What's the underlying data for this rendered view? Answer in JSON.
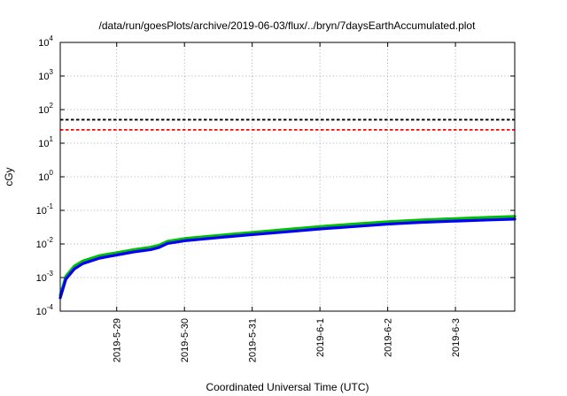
{
  "chart_data": {
    "type": "line",
    "title": "/data/run/goesPlots/archive/2019-06-03/flux/../bryn/7daysEarthAccumulated.plot",
    "xlabel": "Coordinated Universal Time (UTC)",
    "ylabel": "cGy",
    "x_range": [
      "2019-05-28T04:00",
      "2019-06-03T21:00"
    ],
    "ylim": [
      0.0001,
      10000
    ],
    "yscale": "log",
    "grid": true,
    "x_ticks": [
      "2019-5-29",
      "2019-5-30",
      "2019-5-31",
      "2019-6-1",
      "2019-6-2",
      "2019-6-3"
    ],
    "y_ticks": [
      {
        "value": 0.0001,
        "base": "10",
        "exp": "-4"
      },
      {
        "value": 0.001,
        "base": "10",
        "exp": "-3"
      },
      {
        "value": 0.01,
        "base": "10",
        "exp": "-2"
      },
      {
        "value": 0.1,
        "base": "10",
        "exp": "-1"
      },
      {
        "value": 1,
        "base": "10",
        "exp": "0"
      },
      {
        "value": 10,
        "base": "10",
        "exp": "1"
      },
      {
        "value": 100,
        "base": "10",
        "exp": "2"
      },
      {
        "value": 1000,
        "base": "10",
        "exp": "3"
      },
      {
        "value": 10000,
        "base": "10",
        "exp": "4"
      }
    ],
    "thresholds": [
      {
        "value": 50,
        "color": "#000000"
      },
      {
        "value": 25,
        "color": "#ff0000"
      }
    ],
    "series": [
      {
        "color": "#00c000",
        "x": [
          "2019-05-28T04:00",
          "2019-05-28T06:00",
          "2019-05-28T09:00",
          "2019-05-28T12:00",
          "2019-05-28T18:00",
          "2019-05-29T00:00",
          "2019-05-29T06:00",
          "2019-05-29T12:00",
          "2019-05-29T15:00",
          "2019-05-29T18:00",
          "2019-05-30T00:00",
          "2019-05-30T12:00",
          "2019-05-31T00:00",
          "2019-05-31T12:00",
          "2019-06-01T00:00",
          "2019-06-01T12:00",
          "2019-06-02T00:00",
          "2019-06-02T12:00",
          "2019-06-03T00:00",
          "2019-06-03T12:00",
          "2019-06-03T21:00"
        ],
        "y": [
          0.0003,
          0.0011,
          0.0022,
          0.0031,
          0.0045,
          0.0055,
          0.0068,
          0.008,
          0.0092,
          0.0121,
          0.0145,
          0.018,
          0.022,
          0.027,
          0.033,
          0.039,
          0.046,
          0.052,
          0.057,
          0.062,
          0.066
        ]
      },
      {
        "color": "#0000ff",
        "x": [
          "2019-05-28T04:00",
          "2019-05-28T06:00",
          "2019-05-28T09:00",
          "2019-05-28T12:00",
          "2019-05-28T18:00",
          "2019-05-29T00:00",
          "2019-05-29T06:00",
          "2019-05-29T12:00",
          "2019-05-29T15:00",
          "2019-05-29T18:00",
          "2019-05-30T00:00",
          "2019-05-30T12:00",
          "2019-05-31T00:00",
          "2019-05-31T12:00",
          "2019-06-01T00:00",
          "2019-06-01T12:00",
          "2019-06-02T00:00",
          "2019-06-02T12:00",
          "2019-06-03T00:00",
          "2019-06-03T12:00",
          "2019-06-03T21:00"
        ],
        "y": [
          0.00025,
          0.0009,
          0.0018,
          0.0026,
          0.0038,
          0.0047,
          0.0058,
          0.0068,
          0.0079,
          0.0104,
          0.0124,
          0.0155,
          0.019,
          0.023,
          0.028,
          0.033,
          0.039,
          0.044,
          0.048,
          0.052,
          0.055
        ]
      }
    ]
  }
}
